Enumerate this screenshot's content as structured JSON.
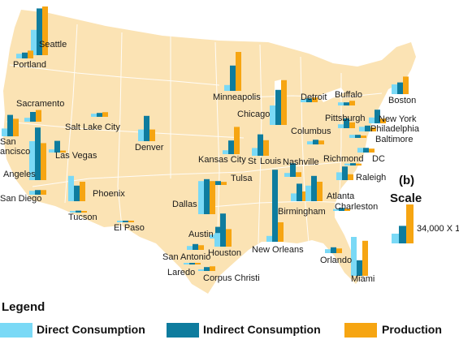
{
  "colors": {
    "land": "#fbe3b4",
    "border": "#ffffff",
    "direct": "#7ad9f6",
    "indirect": "#0e7c9e",
    "production": "#f6a512",
    "text": "#111111"
  },
  "panel_label": "(b)",
  "legend": {
    "title": "Legend",
    "items": [
      {
        "label": "Direct Consumption",
        "color": "#7ad9f6"
      },
      {
        "label": "Indirect Consumption",
        "color": "#0e7c9e"
      },
      {
        "label": "Production",
        "color": "#f6a512"
      }
    ]
  },
  "scale": {
    "title": "Scale",
    "label": "34,000 X 1",
    "values": [
      0.25,
      0.45,
      1.0
    ]
  },
  "chart_data": {
    "type": "bar",
    "series_names": [
      "Direct Consumption",
      "Indirect Consumption",
      "Production"
    ],
    "cities": [
      {
        "name": "Seattle",
        "values": [
          0.65,
          1.2,
          1.25
        ]
      },
      {
        "name": "Portland",
        "values": [
          0.12,
          0.15,
          0.2
        ]
      },
      {
        "name": "Sacramento",
        "values": [
          0.1,
          0.25,
          0.3
        ]
      },
      {
        "name": "San Francisco",
        "values": [
          0.2,
          0.55,
          0.45
        ]
      },
      {
        "name": "Los Angeles",
        "values": [
          1.0,
          1.35,
          0.95
        ]
      },
      {
        "name": "San Diego",
        "values": [
          0.1,
          0.12,
          0.12
        ]
      },
      {
        "name": "Las Vegas",
        "values": [
          0.08,
          0.3,
          0.05
        ]
      },
      {
        "name": "Phoenix",
        "values": [
          0.65,
          0.4,
          0.5
        ]
      },
      {
        "name": "Tucson",
        "values": [
          0.04,
          0.05,
          0.03
        ]
      },
      {
        "name": "Salt Lake City",
        "values": [
          0.08,
          0.1,
          0.12
        ]
      },
      {
        "name": "Denver",
        "values": [
          0.3,
          0.65,
          0.3
        ]
      },
      {
        "name": "El Paso",
        "values": [
          0.03,
          0.04,
          0.02
        ]
      },
      {
        "name": "Minneapolis",
        "values": [
          0.15,
          0.65,
          1.0
        ]
      },
      {
        "name": "Kansas City",
        "values": [
          0.1,
          0.35,
          0.7
        ]
      },
      {
        "name": "St Louis",
        "values": [
          0.2,
          0.55,
          0.4
        ]
      },
      {
        "name": "Chicago",
        "values": [
          0.5,
          0.9,
          1.15
        ]
      },
      {
        "name": "Tulsa",
        "values": [
          0.1,
          0.1,
          0.08
        ]
      },
      {
        "name": "Dallas",
        "values": [
          0.85,
          0.9,
          0.85
        ]
      },
      {
        "name": "Austin",
        "values": [
          0.1,
          0.3,
          0.2
        ]
      },
      {
        "name": "San Antonio",
        "values": [
          0.1,
          0.15,
          0.12
        ]
      },
      {
        "name": "Houston",
        "values": [
          0.35,
          0.85,
          0.45
        ]
      },
      {
        "name": "Laredo",
        "values": [
          0.02,
          0.03,
          0.02
        ]
      },
      {
        "name": "Corpus Christi",
        "values": [
          0.04,
          0.1,
          0.12
        ]
      },
      {
        "name": "New Orleans",
        "values": [
          0.15,
          1.85,
          0.5
        ]
      },
      {
        "name": "Detroit",
        "values": [
          0.08,
          0.1,
          0.12
        ]
      },
      {
        "name": "Columbus",
        "values": [
          0.08,
          0.12,
          0.1
        ]
      },
      {
        "name": "Nashville",
        "values": [
          0.1,
          0.35,
          0.12
        ]
      },
      {
        "name": "Birmingham",
        "values": [
          0.2,
          0.45,
          0.25
        ]
      },
      {
        "name": "Atlanta",
        "values": [
          0.4,
          0.65,
          0.5
        ]
      },
      {
        "name": "Pittsburgh",
        "values": [
          0.1,
          0.25,
          0.15
        ]
      },
      {
        "name": "Buffalo",
        "values": [
          0.08,
          0.08,
          0.12
        ]
      },
      {
        "name": "Boston",
        "values": [
          0.25,
          0.3,
          0.45
        ]
      },
      {
        "name": "New York",
        "values": [
          0.15,
          0.35,
          0.12
        ]
      },
      {
        "name": "Philadelphia",
        "values": [
          0.12,
          0.15,
          0.1
        ]
      },
      {
        "name": "Baltimore",
        "values": [
          0.08,
          0.08,
          0.06
        ]
      },
      {
        "name": "DC",
        "values": [
          0.12,
          0.12,
          0.1
        ]
      },
      {
        "name": "Richmond",
        "values": [
          0.05,
          0.06,
          0.05
        ]
      },
      {
        "name": "Raleigh",
        "values": [
          0.2,
          0.35,
          0.15
        ]
      },
      {
        "name": "Charleston",
        "values": [
          0.05,
          0.08,
          0.06
        ]
      },
      {
        "name": "Orlando",
        "values": [
          0.1,
          0.15,
          0.12
        ]
      },
      {
        "name": "Miami",
        "values": [
          1.0,
          0.4,
          0.9
        ]
      }
    ],
    "labels": [
      {
        "name": "Seattle",
        "text": "Seattle"
      },
      {
        "name": "Portland",
        "text": "Portland"
      },
      {
        "name": "Sacramento",
        "text": "Sacramento"
      },
      {
        "name": "San Francisco",
        "text": "San"
      },
      {
        "name": "San Francisco 2",
        "text": "ancisco"
      },
      {
        "name": "Los Angeles",
        "text": "Angeles"
      },
      {
        "name": "San Diego",
        "text": "San Diego"
      },
      {
        "name": "Las Vegas",
        "text": "Las Vegas"
      },
      {
        "name": "Phoenix",
        "text": "Phoenix"
      },
      {
        "name": "Tucson",
        "text": "Tucson"
      },
      {
        "name": "Salt Lake City",
        "text": "Salt Lake City"
      },
      {
        "name": "Denver",
        "text": "Denver"
      },
      {
        "name": "El Paso",
        "text": "El Paso"
      },
      {
        "name": "Minneapolis",
        "text": "Minneapolis"
      },
      {
        "name": "Kansas City",
        "text": "Kansas City"
      },
      {
        "name": "St",
        "text": "St"
      },
      {
        "name": "Louis",
        "text": "Louis"
      },
      {
        "name": "Chicago",
        "text": "Chicago"
      },
      {
        "name": "Tulsa",
        "text": "Tulsa"
      },
      {
        "name": "Dallas",
        "text": "Dallas"
      },
      {
        "name": "Austin",
        "text": "Austin"
      },
      {
        "name": "San Antonio",
        "text": "San Antonio"
      },
      {
        "name": "Houston",
        "text": "Houston"
      },
      {
        "name": "Laredo",
        "text": "Laredo"
      },
      {
        "name": "Corpus Christi",
        "text": "Corpus Christi"
      },
      {
        "name": "New Orleans",
        "text": "New Orleans"
      },
      {
        "name": "Detroit",
        "text": "Detroit"
      },
      {
        "name": "Columbus",
        "text": "Columbus"
      },
      {
        "name": "Nashville",
        "text": "Nashville"
      },
      {
        "name": "Birmingham",
        "text": "Birmingham"
      },
      {
        "name": "Atlanta",
        "text": "Atlanta"
      },
      {
        "name": "Pittsburgh",
        "text": "Pittsburgh"
      },
      {
        "name": "Buffalo",
        "text": "Buffalo"
      },
      {
        "name": "Boston",
        "text": "Boston"
      },
      {
        "name": "New York",
        "text": "New York"
      },
      {
        "name": "Philadelphia",
        "text": "Philadelphia"
      },
      {
        "name": "Baltimore",
        "text": "Baltimore"
      },
      {
        "name": "DC",
        "text": "DC"
      },
      {
        "name": "Richmond",
        "text": "Richmond"
      },
      {
        "name": "Raleigh",
        "text": "Raleigh"
      },
      {
        "name": "Charleston",
        "text": "Charleston"
      },
      {
        "name": "Orlando",
        "text": "Orlando"
      },
      {
        "name": "Miami",
        "text": "Miami"
      }
    ]
  }
}
